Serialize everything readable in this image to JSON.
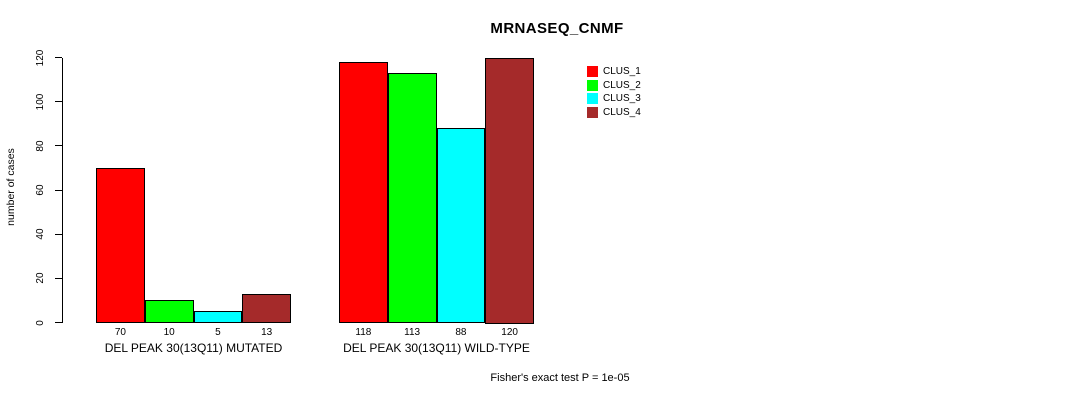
{
  "title": "MRNASEQ_CNMF",
  "y_axis": {
    "label": "number of cases",
    "ticks": [
      0,
      20,
      40,
      60,
      80,
      100,
      120
    ]
  },
  "footer": "Fisher's exact test P = 1e-05",
  "legend": [
    {
      "label": "CLUS_1",
      "color": "#FF0000"
    },
    {
      "label": "CLUS_2",
      "color": "#00FF00"
    },
    {
      "label": "CLUS_3",
      "color": "#00FFFF"
    },
    {
      "label": "CLUS_4",
      "color": "#A52A2A"
    }
  ],
  "chart_data": {
    "type": "bar",
    "title": "MRNASEQ_CNMF",
    "xlabel": "",
    "ylabel": "number of cases",
    "ylim": [
      0,
      120
    ],
    "yticks": [
      0,
      20,
      40,
      60,
      80,
      100,
      120
    ],
    "grid": false,
    "legend_position": "top-right",
    "categories": [
      "DEL PEAK 30(13Q11) MUTATED",
      "DEL PEAK 30(13Q11) WILD-TYPE"
    ],
    "series": [
      {
        "name": "CLUS_1",
        "color": "#FF0000",
        "values": [
          70,
          118
        ]
      },
      {
        "name": "CLUS_2",
        "color": "#00FF00",
        "values": [
          10,
          113
        ]
      },
      {
        "name": "CLUS_3",
        "color": "#00FFFF",
        "values": [
          5,
          88
        ]
      },
      {
        "name": "CLUS_4",
        "color": "#A52A2A",
        "values": [
          13,
          120
        ]
      }
    ],
    "bar_value_labels": [
      [
        70,
        10,
        5,
        13
      ],
      [
        118,
        113,
        88,
        120
      ]
    ],
    "annotation": "Fisher's exact test P = 1e-05"
  }
}
